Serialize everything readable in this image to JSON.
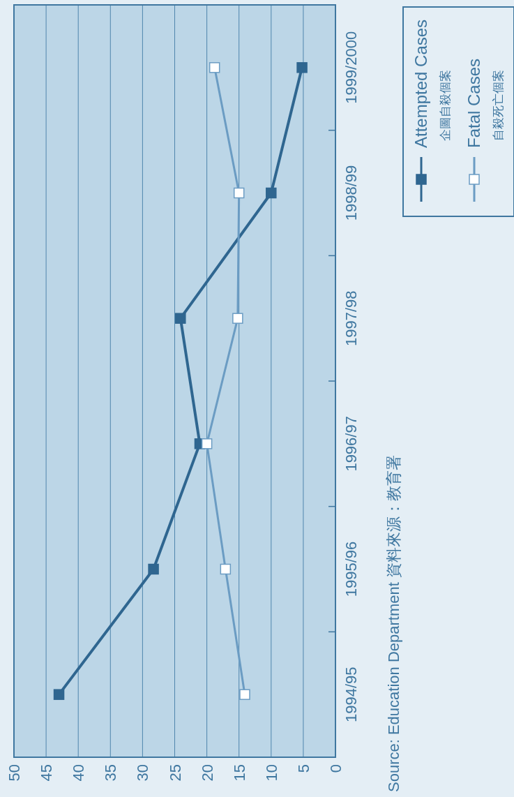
{
  "chart_data": {
    "type": "line",
    "orientation": "horizontal",
    "categories": [
      "1999/2000",
      "1998/99",
      "1997/98",
      "1996/97",
      "1995/96",
      "1994/95"
    ],
    "series": [
      {
        "name": "Attempted Cases\n企圖自殺個案",
        "color": "#2f6690",
        "values": [
          5.2,
          10,
          24.1,
          21.1,
          28.3,
          43
        ]
      },
      {
        "name": "Fatal Cases\n自殺死亡個案",
        "color": "#6b9cc3",
        "values": [
          18.8,
          15,
          15.2,
          20,
          17.1,
          14.1
        ]
      }
    ],
    "xlim": [
      50,
      0
    ],
    "xticks": [
      50,
      45,
      40,
      35,
      30,
      25,
      20,
      15,
      10,
      5,
      0
    ],
    "grid": "x",
    "legend": "right",
    "marker": "square",
    "annotations": [
      "Source: Education Department 資料來源：教育署"
    ]
  }
}
